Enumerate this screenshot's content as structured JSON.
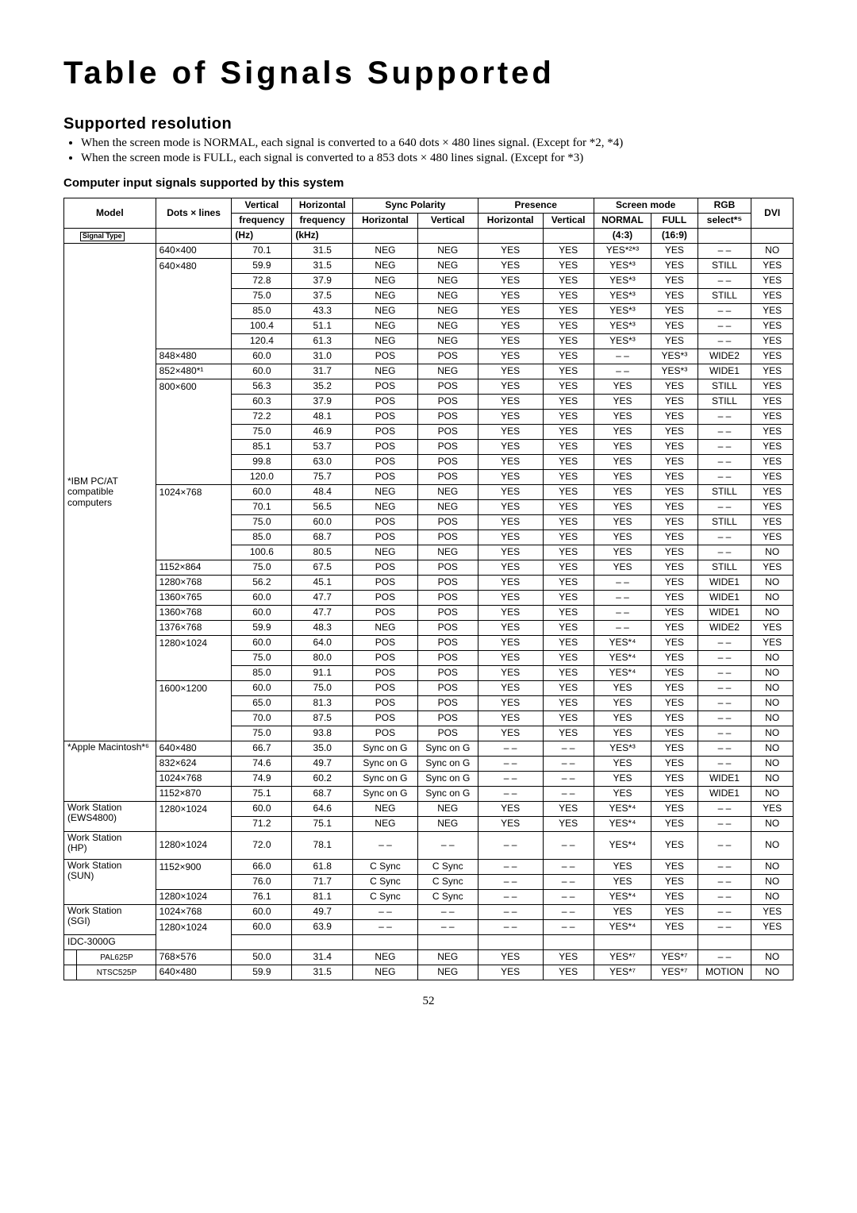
{
  "title": "Table of Signals Supported",
  "subtitle": "Supported resolution",
  "bullet1": "When the screen mode is NORMAL, each signal is converted to a 640 dots × 480 lines signal. (Except for *2, *4)",
  "bullet2": "When the screen mode is FULL, each signal is converted to a 853 dots × 480 lines signal. (Except for *3)",
  "subheader": "Computer input signals supported by this system",
  "head": {
    "model": "Model",
    "dots": "Dots × lines",
    "vfreq": "Vertical",
    "vfreq2": "frequency",
    "hfreq": "Horizontal",
    "hfreq2": "frequency",
    "syncpol": "Sync Polarity",
    "presence": "Presence",
    "screenmode": "Screen mode",
    "rgb": "RGB",
    "rgb2": "select*⁵",
    "dvi": "DVI",
    "horizontal": "Horizontal",
    "vertical": "Vertical",
    "normal": "NORMAL",
    "full": "FULL",
    "sigtype": "Signal Type",
    "hz": "(Hz)",
    "khz": "(kHz)",
    "r43": "(4:3)",
    "r169": "(16:9)"
  },
  "models": {
    "ibm": "*IBM PC/AT compatible computers",
    "apple": "*Apple Macintosh*⁶",
    "ews": "Work Station (EWS4800)",
    "hp": "Work Station (HP)",
    "sun": "Work Station (SUN)",
    "sgi": "Work Station (SGI)",
    "idc": "IDC-3000G",
    "pal": "PAL625P",
    "ntsc": "NTSC525P"
  },
  "rows": [
    [
      "640×400",
      "70.1",
      "31.5",
      "NEG",
      "NEG",
      "YES",
      "YES",
      "YES*²*³",
      "YES",
      "– –",
      "NO"
    ],
    [
      "640×480",
      "59.9",
      "31.5",
      "NEG",
      "NEG",
      "YES",
      "YES",
      "YES*³",
      "YES",
      "STILL",
      "YES"
    ],
    [
      "",
      "72.8",
      "37.9",
      "NEG",
      "NEG",
      "YES",
      "YES",
      "YES*³",
      "YES",
      "– –",
      "YES"
    ],
    [
      "",
      "75.0",
      "37.5",
      "NEG",
      "NEG",
      "YES",
      "YES",
      "YES*³",
      "YES",
      "STILL",
      "YES"
    ],
    [
      "",
      "85.0",
      "43.3",
      "NEG",
      "NEG",
      "YES",
      "YES",
      "YES*³",
      "YES",
      "– –",
      "YES"
    ],
    [
      "",
      "100.4",
      "51.1",
      "NEG",
      "NEG",
      "YES",
      "YES",
      "YES*³",
      "YES",
      "– –",
      "YES"
    ],
    [
      "",
      "120.4",
      "61.3",
      "NEG",
      "NEG",
      "YES",
      "YES",
      "YES*³",
      "YES",
      "– –",
      "YES"
    ],
    [
      "848×480",
      "60.0",
      "31.0",
      "POS",
      "POS",
      "YES",
      "YES",
      "– –",
      "YES*³",
      "WIDE2",
      "YES"
    ],
    [
      "852×480*¹",
      "60.0",
      "31.7",
      "NEG",
      "NEG",
      "YES",
      "YES",
      "– –",
      "YES*³",
      "WIDE1",
      "YES"
    ],
    [
      "800×600",
      "56.3",
      "35.2",
      "POS",
      "POS",
      "YES",
      "YES",
      "YES",
      "YES",
      "STILL",
      "YES"
    ],
    [
      "",
      "60.3",
      "37.9",
      "POS",
      "POS",
      "YES",
      "YES",
      "YES",
      "YES",
      "STILL",
      "YES"
    ],
    [
      "",
      "72.2",
      "48.1",
      "POS",
      "POS",
      "YES",
      "YES",
      "YES",
      "YES",
      "– –",
      "YES"
    ],
    [
      "",
      "75.0",
      "46.9",
      "POS",
      "POS",
      "YES",
      "YES",
      "YES",
      "YES",
      "– –",
      "YES"
    ],
    [
      "",
      "85.1",
      "53.7",
      "POS",
      "POS",
      "YES",
      "YES",
      "YES",
      "YES",
      "– –",
      "YES"
    ],
    [
      "",
      "99.8",
      "63.0",
      "POS",
      "POS",
      "YES",
      "YES",
      "YES",
      "YES",
      "– –",
      "YES"
    ],
    [
      "",
      "120.0",
      "75.7",
      "POS",
      "POS",
      "YES",
      "YES",
      "YES",
      "YES",
      "– –",
      "YES"
    ],
    [
      "1024×768",
      "60.0",
      "48.4",
      "NEG",
      "NEG",
      "YES",
      "YES",
      "YES",
      "YES",
      "STILL",
      "YES"
    ],
    [
      "",
      "70.1",
      "56.5",
      "NEG",
      "NEG",
      "YES",
      "YES",
      "YES",
      "YES",
      "– –",
      "YES"
    ],
    [
      "",
      "75.0",
      "60.0",
      "POS",
      "POS",
      "YES",
      "YES",
      "YES",
      "YES",
      "STILL",
      "YES"
    ],
    [
      "",
      "85.0",
      "68.7",
      "POS",
      "POS",
      "YES",
      "YES",
      "YES",
      "YES",
      "– –",
      "YES"
    ],
    [
      "",
      "100.6",
      "80.5",
      "NEG",
      "NEG",
      "YES",
      "YES",
      "YES",
      "YES",
      "– –",
      "NO"
    ],
    [
      "1152×864",
      "75.0",
      "67.5",
      "POS",
      "POS",
      "YES",
      "YES",
      "YES",
      "YES",
      "STILL",
      "YES"
    ],
    [
      "1280×768",
      "56.2",
      "45.1",
      "POS",
      "POS",
      "YES",
      "YES",
      "– –",
      "YES",
      "WIDE1",
      "NO"
    ],
    [
      "1360×765",
      "60.0",
      "47.7",
      "POS",
      "POS",
      "YES",
      "YES",
      "– –",
      "YES",
      "WIDE1",
      "NO"
    ],
    [
      "1360×768",
      "60.0",
      "47.7",
      "POS",
      "POS",
      "YES",
      "YES",
      "– –",
      "YES",
      "WIDE1",
      "NO"
    ],
    [
      "1376×768",
      "59.9",
      "48.3",
      "NEG",
      "POS",
      "YES",
      "YES",
      "– –",
      "YES",
      "WIDE2",
      "YES"
    ],
    [
      "1280×1024",
      "60.0",
      "64.0",
      "POS",
      "POS",
      "YES",
      "YES",
      "YES*⁴",
      "YES",
      "– –",
      "YES"
    ],
    [
      "",
      "75.0",
      "80.0",
      "POS",
      "POS",
      "YES",
      "YES",
      "YES*⁴",
      "YES",
      "– –",
      "NO"
    ],
    [
      "",
      "85.0",
      "91.1",
      "POS",
      "POS",
      "YES",
      "YES",
      "YES*⁴",
      "YES",
      "– –",
      "NO"
    ],
    [
      "1600×1200",
      "60.0",
      "75.0",
      "POS",
      "POS",
      "YES",
      "YES",
      "YES",
      "YES",
      "– –",
      "NO"
    ],
    [
      "",
      "65.0",
      "81.3",
      "POS",
      "POS",
      "YES",
      "YES",
      "YES",
      "YES",
      "– –",
      "NO"
    ],
    [
      "",
      "70.0",
      "87.5",
      "POS",
      "POS",
      "YES",
      "YES",
      "YES",
      "YES",
      "– –",
      "NO"
    ],
    [
      "",
      "75.0",
      "93.8",
      "POS",
      "POS",
      "YES",
      "YES",
      "YES",
      "YES",
      "– –",
      "NO"
    ],
    [
      "640×480",
      "66.7",
      "35.0",
      "Sync on G",
      "Sync on G",
      "– –",
      "– –",
      "YES*³",
      "YES",
      "– –",
      "NO"
    ],
    [
      "832×624",
      "74.6",
      "49.7",
      "Sync on G",
      "Sync on G",
      "– –",
      "– –",
      "YES",
      "YES",
      "– –",
      "NO"
    ],
    [
      "1024×768",
      "74.9",
      "60.2",
      "Sync on G",
      "Sync on G",
      "– –",
      "– –",
      "YES",
      "YES",
      "WIDE1",
      "NO"
    ],
    [
      "1152×870",
      "75.1",
      "68.7",
      "Sync on G",
      "Sync on G",
      "– –",
      "– –",
      "YES",
      "YES",
      "WIDE1",
      "NO"
    ],
    [
      "1280×1024",
      "60.0",
      "64.6",
      "NEG",
      "NEG",
      "YES",
      "YES",
      "YES*⁴",
      "YES",
      "– –",
      "YES"
    ],
    [
      "",
      "71.2",
      "75.1",
      "NEG",
      "NEG",
      "YES",
      "YES",
      "YES*⁴",
      "YES",
      "– –",
      "NO"
    ],
    [
      "1280×1024",
      "72.0",
      "78.1",
      "– –",
      "– –",
      "– –",
      "– –",
      "YES*⁴",
      "YES",
      "– –",
      "NO"
    ],
    [
      "1152×900",
      "66.0",
      "61.8",
      "C Sync",
      "C Sync",
      "– –",
      "– –",
      "YES",
      "YES",
      "– –",
      "NO"
    ],
    [
      "",
      "76.0",
      "71.7",
      "C Sync",
      "C Sync",
      "– –",
      "– –",
      "YES",
      "YES",
      "– –",
      "NO"
    ],
    [
      "1280×1024",
      "76.1",
      "81.1",
      "C Sync",
      "C Sync",
      "– –",
      "– –",
      "YES*⁴",
      "YES",
      "– –",
      "NO"
    ],
    [
      "1024×768",
      "60.0",
      "49.7",
      "– –",
      "– –",
      "– –",
      "– –",
      "YES",
      "YES",
      "– –",
      "YES"
    ],
    [
      "1280×1024",
      "60.0",
      "63.9",
      "– –",
      "– –",
      "– –",
      "– –",
      "YES*⁴",
      "YES",
      "– –",
      "YES"
    ],
    [
      "",
      "",
      "",
      "",
      "",
      "",
      "",
      "",
      "",
      "",
      ""
    ],
    [
      "768×576",
      "50.0",
      "31.4",
      "NEG",
      "NEG",
      "YES",
      "YES",
      "YES*⁷",
      "YES*⁷",
      "– –",
      "NO"
    ],
    [
      "640×480",
      "59.9",
      "31.5",
      "NEG",
      "NEG",
      "YES",
      "YES",
      "YES*⁷",
      "YES*⁷",
      "MOTION",
      "NO"
    ]
  ],
  "pagenum": "52"
}
